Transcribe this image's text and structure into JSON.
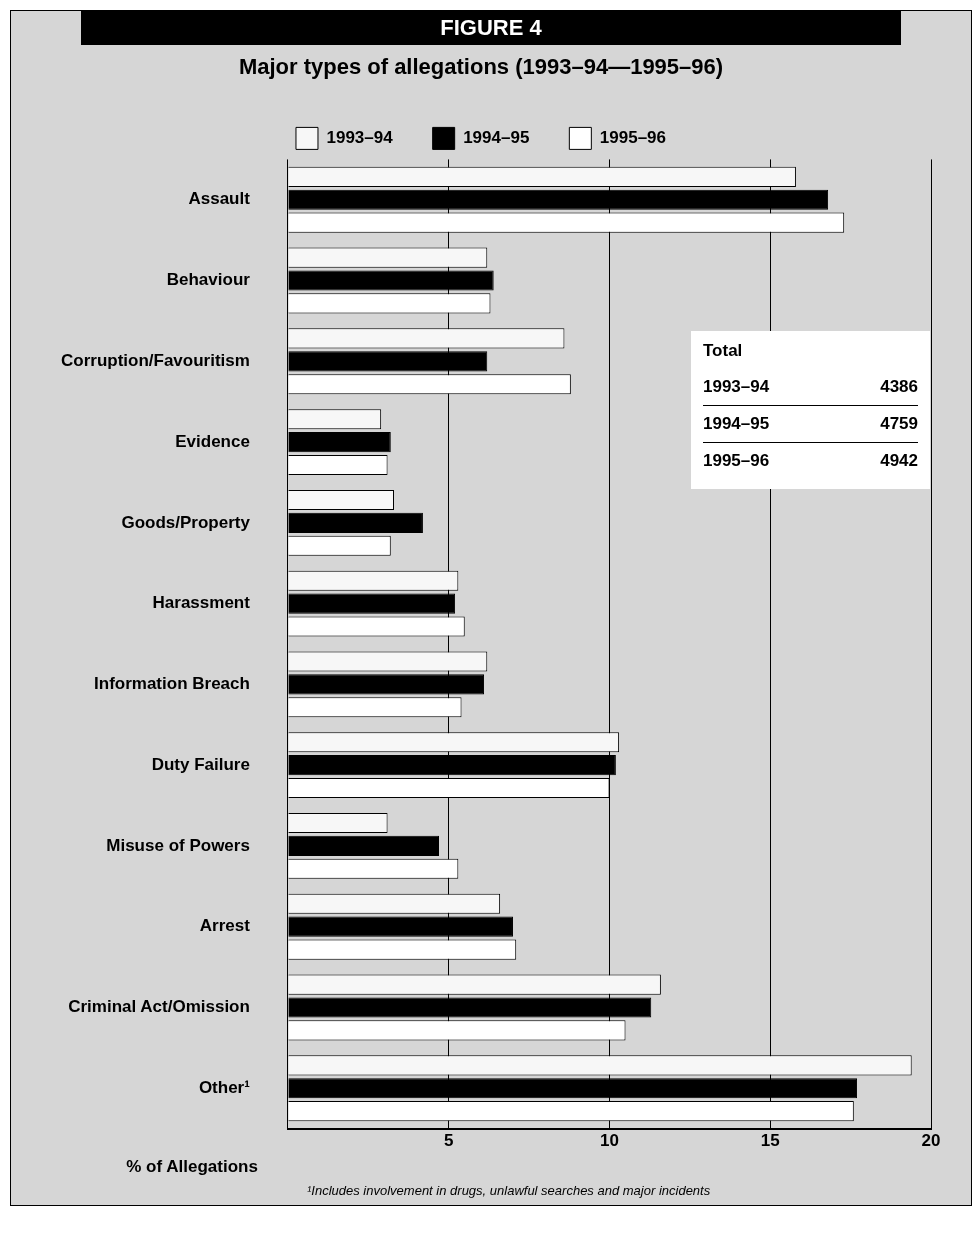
{
  "chart_data": {
    "type": "bar",
    "orientation": "horizontal",
    "title": "FIGURE 4",
    "subtitle": "Major types of allegations (1993–94—1995–96)",
    "xlabel": "% of Allegations",
    "categories": [
      "Assault",
      "Behaviour",
      "Corruption/Favouritism",
      "Evidence",
      "Goods/Property",
      "Harassment",
      "Information Breach",
      "Duty Failure",
      "Misuse of Powers",
      "Arrest",
      "Criminal Act/Omission",
      "Other¹"
    ],
    "series": [
      {
        "name": "1993–94",
        "color": "#f7f7f7",
        "values": [
          15.8,
          6.2,
          8.6,
          2.9,
          3.3,
          5.3,
          6.2,
          10.3,
          3.1,
          6.6,
          11.6,
          19.4
        ]
      },
      {
        "name": "1994–95",
        "color": "#000000",
        "values": [
          16.8,
          6.4,
          6.2,
          3.2,
          4.2,
          5.2,
          6.1,
          10.2,
          4.7,
          7.0,
          11.3,
          17.7
        ]
      },
      {
        "name": "1995–96",
        "color": "#ffffff",
        "values": [
          17.3,
          6.3,
          8.8,
          3.1,
          3.2,
          5.5,
          5.4,
          10.0,
          5.3,
          7.1,
          10.5,
          17.6
        ]
      }
    ],
    "xlim": [
      0,
      20
    ],
    "xticks": [
      {
        "value": 0,
        "label": null
      },
      5,
      10,
      15,
      20
    ],
    "grid": "x",
    "legend": "top",
    "annotations": [
      "Total",
      "1993–94",
      "4386",
      "1994–95",
      "4759",
      "1995–96",
      "4942",
      "¹Includes involvement in drugs, unlawful searches and major incidents"
    ]
  }
}
